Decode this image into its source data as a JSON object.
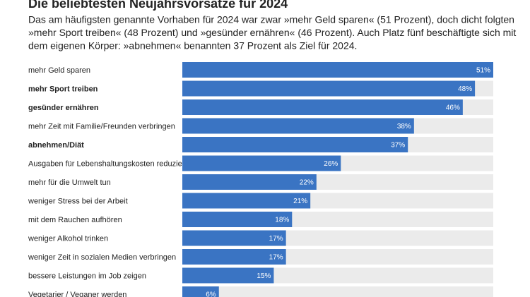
{
  "chart_data": {
    "type": "bar",
    "orientation": "horizontal",
    "title": "Die beliebtesten Neujahrsvorsätze für 2024",
    "subtitle_lines": [
      "Das am häufigsten genannte Vorhaben für 2024 war zwar »mehr Geld sparen« (51 Prozent), doch dicht folgten",
      "»mehr Sport treiben« (48 Prozent) und »gesünder ernähren« (46 Prozent). Auch Platz fünf beschäftigte sich mit",
      "dem eigenen Körper: »abnehmen« benannten 37 Prozent als Ziel für 2024."
    ],
    "categories": [
      "mehr Geld sparen",
      "mehr Sport treiben",
      "gesünder ernähren",
      "mehr Zeit mit Familie/Freunden verbringen",
      "abnehmen/Diät",
      "Ausgaben für Lebenshaltungskosten reduzieren",
      "mehr für die Umwelt tun",
      "weniger Stress bei der Arbeit",
      "mit dem Rauchen aufhören",
      "weniger Alkohol trinken",
      "weniger Zeit in sozialen Medien verbringen",
      "bessere Leistungen im Job zeigen",
      "Vegetarier / Veganer werden"
    ],
    "bold": [
      false,
      true,
      true,
      false,
      true,
      false,
      false,
      false,
      false,
      false,
      false,
      false,
      false
    ],
    "values": [
      51,
      48,
      46,
      38,
      37,
      26,
      22,
      21,
      18,
      17,
      17,
      15,
      6
    ],
    "value_labels": [
      "51%",
      "48%",
      "46%",
      "38%",
      "37%",
      "26%",
      "22%",
      "21%",
      "18%",
      "17%",
      "17%",
      "15%",
      "6%"
    ],
    "color": "#3a74c3",
    "track_color": "#ebebeb",
    "xlim": [
      0,
      51
    ]
  }
}
